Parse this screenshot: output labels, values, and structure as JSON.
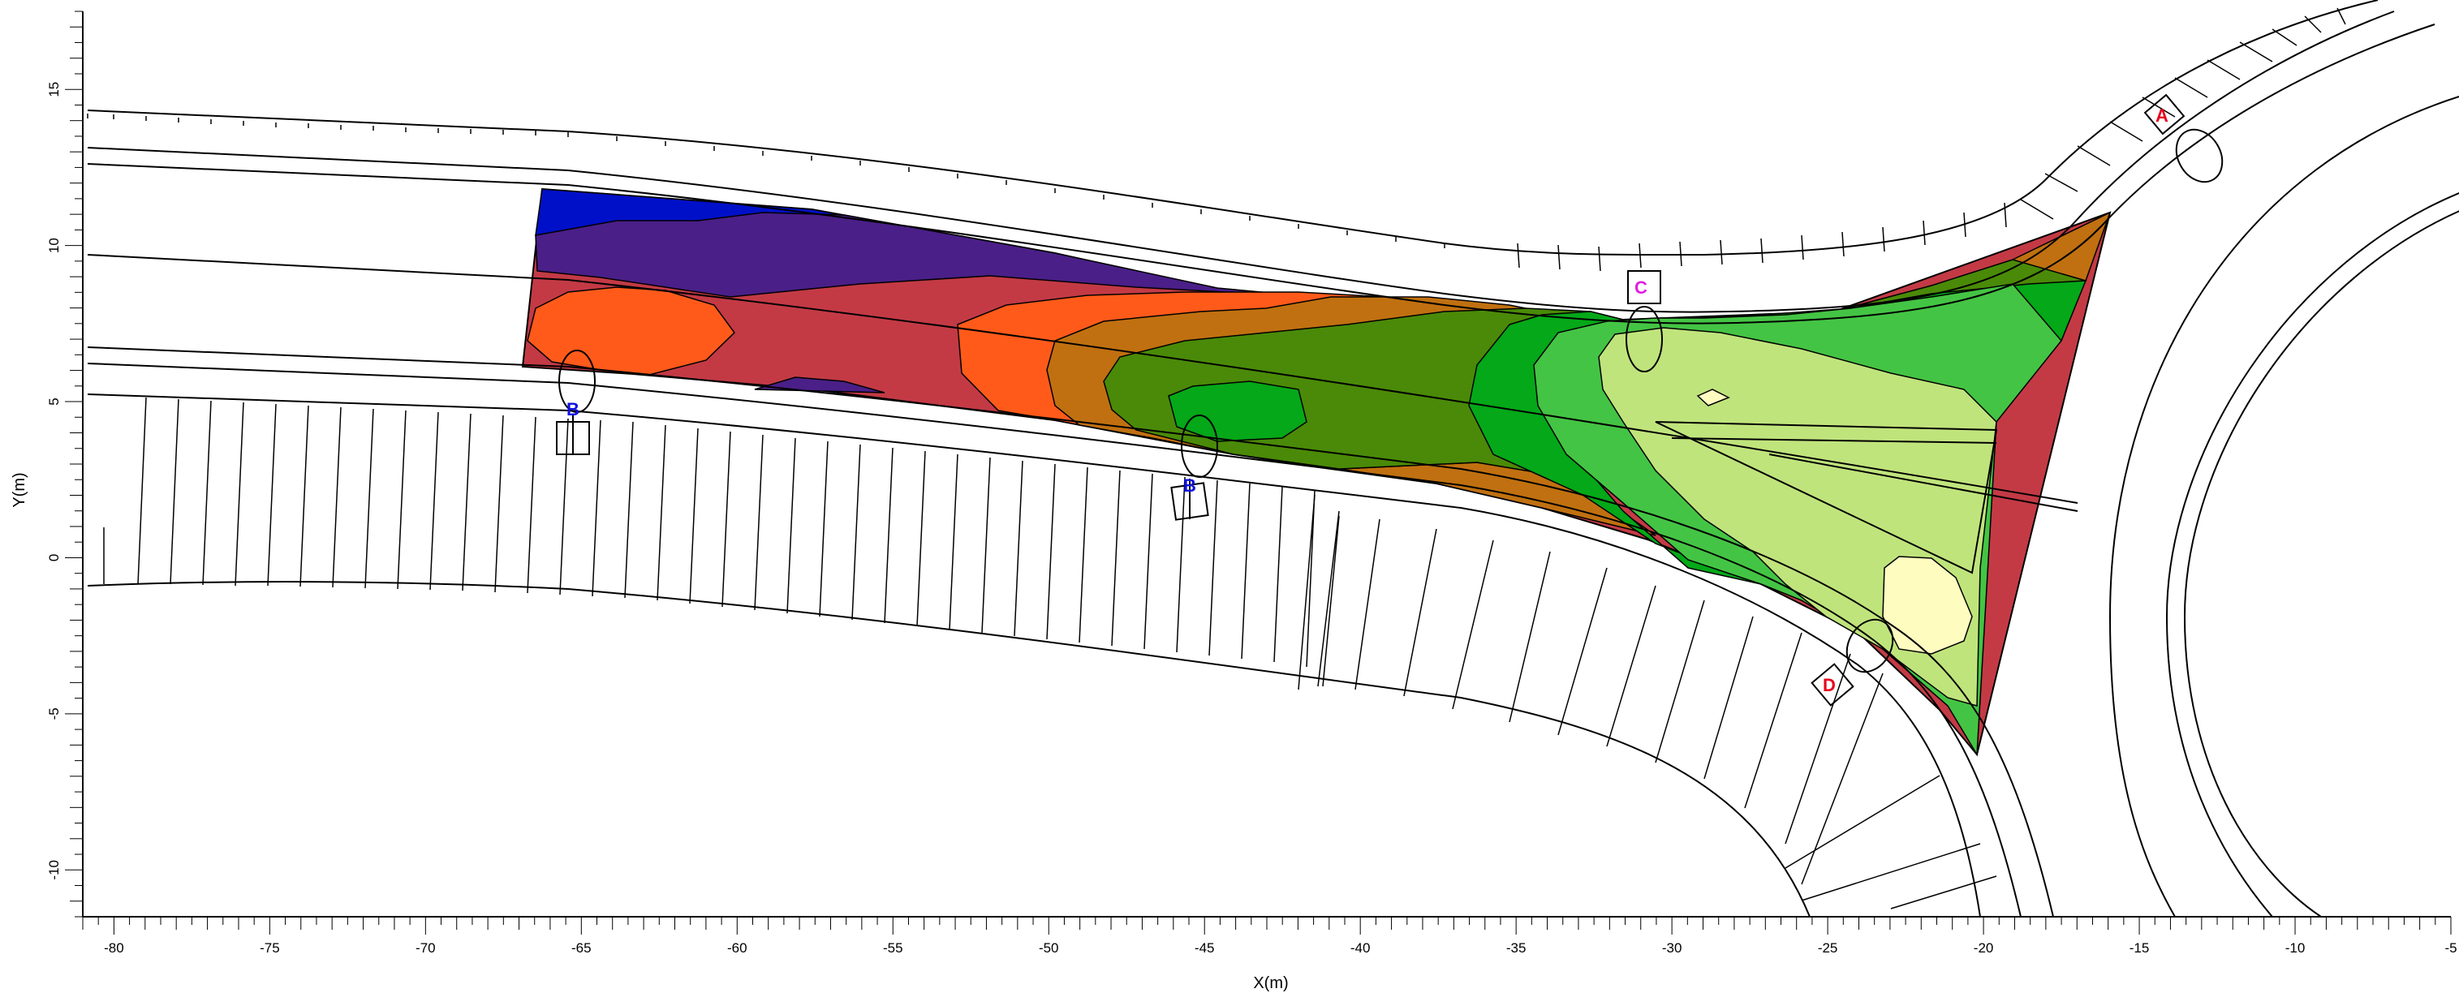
{
  "axes": {
    "x": {
      "title": "X(m)",
      "range": [
        -81,
        -5
      ],
      "major_ticks": [
        -80,
        -75,
        -70,
        -65,
        -60,
        -55,
        -50,
        -45,
        -40,
        -35,
        -30,
        -25,
        -20,
        -15,
        -10,
        -5
      ],
      "minor_step": 0.5
    },
    "y": {
      "title": "Y(m)",
      "range": [
        -11.5,
        17.5
      ],
      "major_ticks": [
        -10,
        -5,
        0,
        5,
        10,
        15
      ],
      "minor_step": 0.5
    }
  },
  "colors": {
    "level_1": "#0010c8",
    "level_2": "#4a1f88",
    "level_3": "#c33a45",
    "level_4": "#ff5a1a",
    "level_5": "#c07010",
    "level_6": "#4a8a08",
    "level_7": "#04a818",
    "level_8": "#44c444",
    "level_9": "#c0e47c",
    "level_10": "#fffcc0"
  },
  "markers": [
    {
      "id": "A",
      "label": "A",
      "color": "#e8001c",
      "x": -13.8,
      "y": 14.4
    },
    {
      "id": "B1",
      "label": "B",
      "color": "#1010e0",
      "x": -65.6,
      "y": 5.0
    },
    {
      "id": "B2",
      "label": "B",
      "color": "#1010e0",
      "x": -45.4,
      "y": 2.4
    },
    {
      "id": "C",
      "label": "C",
      "color": "#e020e0",
      "x": -30.8,
      "y": 8.9
    },
    {
      "id": "D",
      "label": "D",
      "color": "#e8001c",
      "x": -24.9,
      "y": -4.0
    }
  ]
}
